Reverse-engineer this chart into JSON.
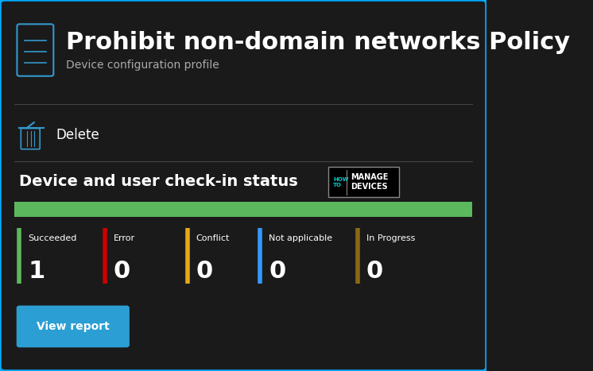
{
  "bg_color": "#1a1a1a",
  "border_color": "#00aaff",
  "title": "Prohibit non-domain networks Policy",
  "subtitle": "Device configuration profile",
  "delete_label": "Delete",
  "section_title": "Device and user check-in status",
  "progress_bar_color": "#5cb85c",
  "stats": [
    {
      "label": "Succeeded",
      "value": "1",
      "color": "#5cb85c"
    },
    {
      "label": "Error",
      "value": "0",
      "color": "#cc0000"
    },
    {
      "label": "Conflict",
      "value": "0",
      "color": "#e6a817"
    },
    {
      "label": "Not applicable",
      "value": "0",
      "color": "#3399ff"
    },
    {
      "label": "In Progress",
      "value": "0",
      "color": "#8b6914"
    }
  ],
  "button_label": "View report",
  "button_color": "#2b9fd4",
  "button_text_color": "#ffffff",
  "title_fontsize": 22,
  "subtitle_fontsize": 10,
  "section_fontsize": 14,
  "stat_label_fontsize": 8,
  "stat_value_fontsize": 22,
  "sep_color": "#444444",
  "icon_color": "#3399cc",
  "logo_howto_color": "#00cccc",
  "logo_manage_color": "#ffffff"
}
